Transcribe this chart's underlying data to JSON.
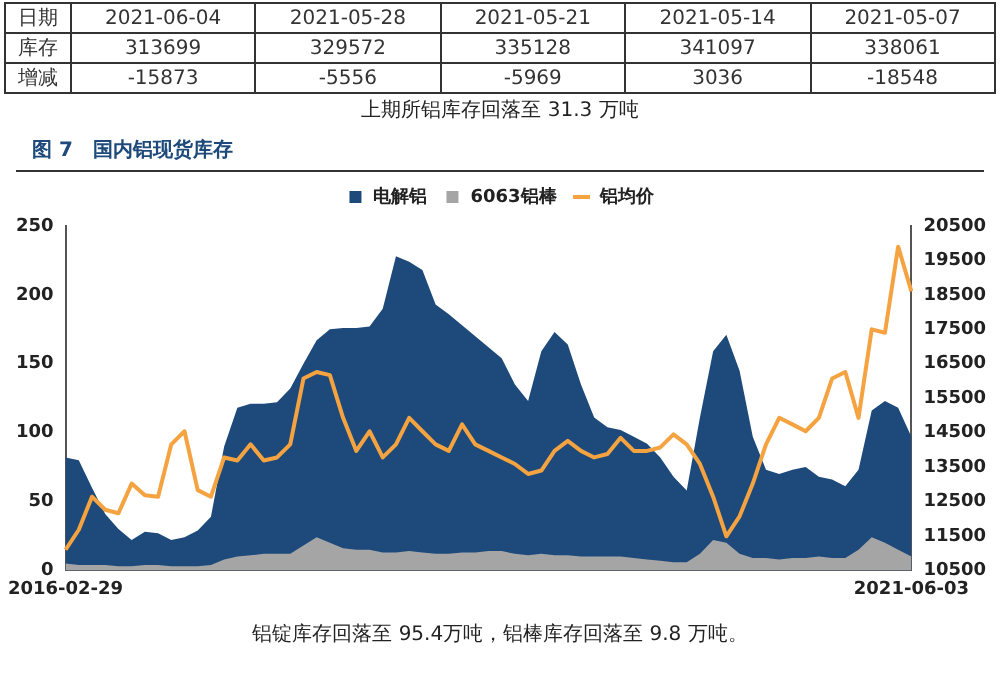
{
  "chart_data": [
    {
      "type": "other",
      "xlabel": "日期",
      "data_labels": true,
      "categories": [
        "2021-06-04",
        "2021-05-28",
        "2021-05-21",
        "2021-05-14",
        "2021-05-07"
      ],
      "series": [
        {
          "name": "库存",
          "values": [
            313699,
            329572,
            335128,
            341097,
            338061
          ]
        },
        {
          "name": "增减",
          "values": [
            -15873,
            -5556,
            -5969,
            3036,
            -18548
          ]
        }
      ],
      "annotations": [
        "上期所铝库存回落至 31.3 万吨"
      ]
    },
    {
      "type": "area",
      "title": "图 7　国内铝现货库存",
      "categories": [
        "2016-02-29",
        null,
        null,
        null,
        null,
        null,
        null,
        null,
        null,
        null,
        null,
        null,
        null,
        null,
        null,
        null,
        null,
        null,
        null,
        null,
        null,
        null,
        null,
        null,
        null,
        null,
        null,
        null,
        null,
        null,
        null,
        null,
        null,
        null,
        null,
        null,
        null,
        null,
        null,
        null,
        null,
        null,
        null,
        null,
        null,
        null,
        null,
        null,
        null,
        null,
        null,
        null,
        null,
        null,
        null,
        null,
        null,
        null,
        null,
        null,
        null,
        null,
        null,
        null,
        "2021-06-03"
      ],
      "series": [
        {
          "name": "电解铝",
          "color": "#1d4a7a",
          "values": [
            82,
            80,
            60,
            41,
            30,
            22,
            28,
            27,
            22,
            24,
            29,
            39,
            90,
            118,
            121,
            121,
            122,
            132,
            150,
            167,
            175,
            176,
            176,
            177,
            190,
            228,
            224,
            218,
            193,
            186,
            178,
            170,
            162,
            154,
            135,
            123,
            159,
            173,
            164,
            135,
            111,
            104,
            102,
            97,
            92,
            82,
            68,
            58,
            111,
            159,
            171,
            145,
            97,
            73,
            70,
            73,
            75,
            68,
            66,
            61,
            73,
            116,
            123,
            118,
            97
          ]
        },
        {
          "name": "6063铝棒",
          "color": "#a5a5a5",
          "values": [
            5,
            4,
            4,
            4,
            3,
            3,
            4,
            4,
            3,
            3,
            3,
            4,
            8,
            10,
            11,
            12,
            12,
            12,
            18,
            24,
            20,
            16,
            15,
            15,
            13,
            13,
            14,
            13,
            12,
            12,
            13,
            13,
            14,
            14,
            12,
            11,
            12,
            11,
            11,
            10,
            10,
            10,
            10,
            9,
            8,
            7,
            6,
            6,
            12,
            22,
            20,
            12,
            9,
            9,
            8,
            9,
            9,
            10,
            9,
            9,
            15,
            24,
            20,
            15,
            10
          ]
        },
        {
          "name": "铝均价",
          "type": "line",
          "axis": "y2",
          "color": "#f4a340",
          "values": [
            11100,
            11680,
            12640,
            12260,
            12160,
            13020,
            12680,
            12640,
            14160,
            14540,
            12830,
            12640,
            13780,
            13690,
            14160,
            13690,
            13780,
            14160,
            16070,
            16260,
            16170,
            14930,
            13970,
            14540,
            13780,
            14160,
            14930,
            14540,
            14160,
            13970,
            14740,
            14160,
            13970,
            13780,
            13590,
            13300,
            13400,
            13970,
            14260,
            13970,
            13780,
            13880,
            14350,
            13970,
            13970,
            14070,
            14450,
            14160,
            13590,
            12640,
            11490,
            12070,
            13020,
            14160,
            14930,
            14740,
            14540,
            14930,
            16070,
            16260,
            14930,
            17500,
            17400,
            19900,
            18600
          ]
        }
      ],
      "ylim": [
        0,
        250
      ],
      "yticks": [
        0,
        50,
        100,
        150,
        200,
        250
      ],
      "y2lim": [
        10500,
        20500
      ],
      "y2ticks": [
        10500,
        11500,
        12500,
        13500,
        14500,
        15500,
        16500,
        17500,
        18500,
        19500,
        20500
      ],
      "legend": "top",
      "marker": "none",
      "annotations": [
        "铝锭库存回落至 95.4万吨，铝棒库存回落至 9.8 万吨。"
      ]
    }
  ]
}
